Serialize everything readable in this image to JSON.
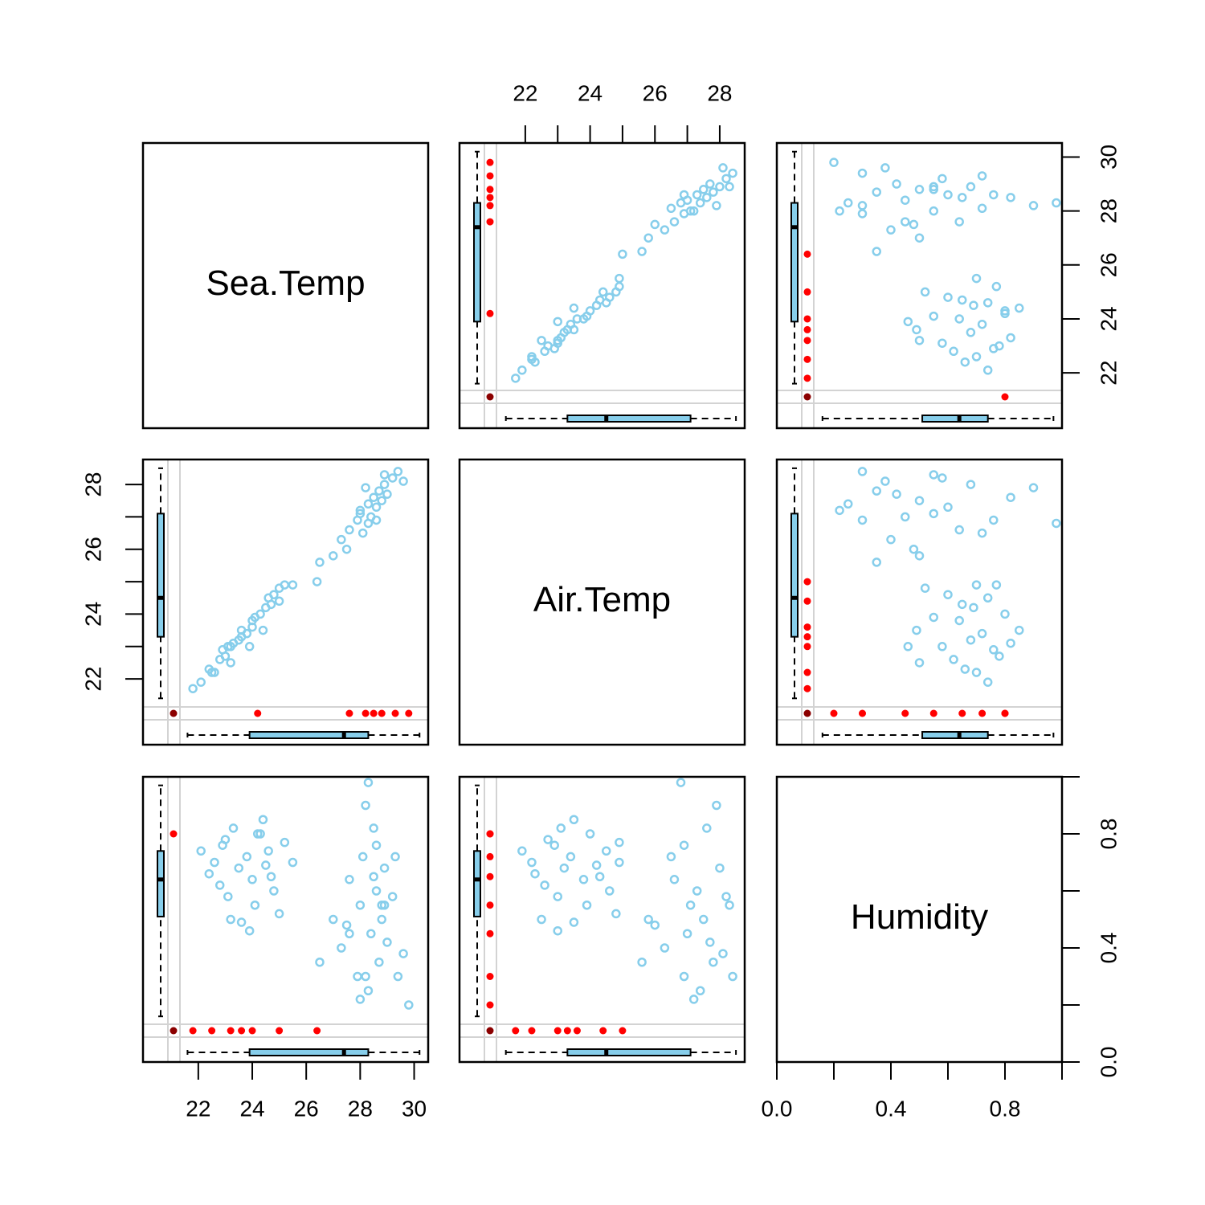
{
  "chart_data": {
    "type": "scatter_matrix",
    "variables": [
      "Sea.Temp",
      "Air.Temp",
      "Humidity"
    ],
    "lims": [
      [
        19.95,
        30.52
      ],
      [
        19.97,
        28.77
      ],
      [
        0,
        1
      ]
    ],
    "ticks": [
      [
        22,
        24,
        26,
        28,
        30
      ],
      [
        22,
        24,
        26,
        28
      ],
      [
        {
          "value": 0,
          "label": "0.0"
        },
        {
          "value": 0.4,
          "label": "0.4"
        },
        {
          "value": 0.8,
          "label": "0.8"
        }
      ]
    ],
    "minor_ticks": [
      [],
      [
        23,
        25,
        27
      ],
      [
        0.2,
        0.6,
        1
      ]
    ],
    "colors": {
      "observed": "#87ceeb",
      "missing": "#ff0000",
      "both_missing": "#8b0000"
    },
    "box_stats": [
      [
        21.6,
        23.9,
        27.4,
        28.3,
        30.2
      ],
      [
        21.4,
        23.3,
        24.5,
        27.1,
        28.5
      ],
      [
        0.16,
        0.51,
        0.64,
        0.74,
        0.97
      ]
    ],
    "rows": [
      [
        22.1,
        21.9,
        0.74
      ],
      [
        22.4,
        22.3,
        0.66
      ],
      [
        22.6,
        22.2,
        0.7
      ],
      [
        22.8,
        22.6,
        0.62
      ],
      [
        23.0,
        22.7,
        0.78
      ],
      [
        23.1,
        23.0,
        0.58
      ],
      [
        23.3,
        23.1,
        0.82
      ],
      [
        23.5,
        23.2,
        0.68
      ],
      [
        23.6,
        23.5,
        0.49
      ],
      [
        23.8,
        23.4,
        0.72
      ],
      [
        24.0,
        23.8,
        0.64
      ],
      [
        24.1,
        23.9,
        0.55
      ],
      [
        24.3,
        24.0,
        0.8
      ],
      [
        24.5,
        24.2,
        0.69
      ],
      [
        24.6,
        24.5,
        0.74
      ],
      [
        24.8,
        24.6,
        0.6
      ],
      [
        25.0,
        24.8,
        0.52
      ],
      [
        25.2,
        24.9,
        0.77
      ],
      [
        23.9,
        23.0,
        0.46
      ],
      [
        24.4,
        23.5,
        0.85
      ],
      [
        22.9,
        22.9,
        0.76
      ],
      [
        24.7,
        24.3,
        0.65
      ],
      [
        25.5,
        24.9,
        0.7
      ],
      [
        23.2,
        22.5,
        0.5
      ],
      [
        27.0,
        25.8,
        0.5
      ],
      [
        27.3,
        26.3,
        0.4
      ],
      [
        27.6,
        26.6,
        0.64
      ],
      [
        27.9,
        26.9,
        0.3
      ],
      [
        28.0,
        27.1,
        0.55
      ],
      [
        28.1,
        26.5,
        0.72
      ],
      [
        28.3,
        27.4,
        0.25
      ],
      [
        28.4,
        27.0,
        0.45
      ],
      [
        28.5,
        27.6,
        0.82
      ],
      [
        28.6,
        27.3,
        0.6
      ],
      [
        28.7,
        27.8,
        0.35
      ],
      [
        28.8,
        27.5,
        0.5
      ],
      [
        28.9,
        28.0,
        0.68
      ],
      [
        29.0,
        27.7,
        0.42
      ],
      [
        29.2,
        28.2,
        0.58
      ],
      [
        29.4,
        28.4,
        0.3
      ],
      [
        28.2,
        27.9,
        0.9
      ],
      [
        28.0,
        27.2,
        0.22
      ],
      [
        29.6,
        28.1,
        0.38
      ],
      [
        28.6,
        26.9,
        0.76
      ],
      [
        27.5,
        26.0,
        0.48
      ],
      [
        28.9,
        28.3,
        0.55
      ],
      [
        26.5,
        25.6,
        0.35
      ],
      [
        28.3,
        26.8,
        0.98
      ],
      [
        28.2,
        null,
        0.3
      ],
      [
        28.8,
        null,
        0.55
      ],
      [
        29.3,
        null,
        0.72
      ],
      [
        29.8,
        null,
        0.2
      ],
      [
        27.6,
        null,
        0.45
      ],
      [
        28.5,
        null,
        0.65
      ],
      [
        24.2,
        null,
        0.8
      ],
      [
        21.8,
        21.7,
        null
      ],
      [
        22.5,
        22.2,
        null
      ],
      [
        23.2,
        23.0,
        null
      ],
      [
        24.0,
        23.6,
        null
      ],
      [
        25.0,
        24.4,
        null
      ],
      [
        26.4,
        25.0,
        null
      ],
      [
        23.6,
        23.3,
        null
      ],
      [
        null,
        null,
        0.8
      ],
      [
        null,
        null,
        null
      ]
    ]
  }
}
